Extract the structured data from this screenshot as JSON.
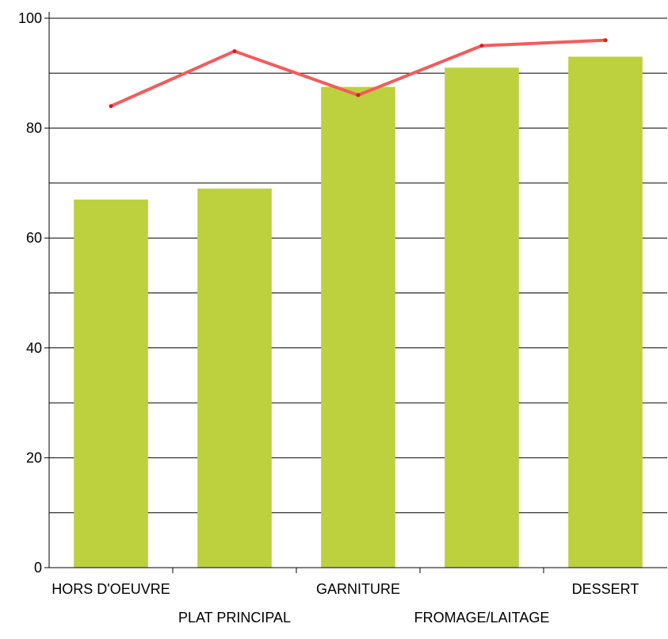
{
  "chart_data": {
    "type": "bar",
    "categories": [
      "HORS D'OEUVRE",
      "PLAT PRINCIPAL",
      "GARNITURE",
      "FROMAGE/LAITAGE",
      "DESSERT"
    ],
    "series": [
      {
        "type": "bar",
        "values": [
          67,
          69,
          87.5,
          91,
          93
        ],
        "color": "#bdd03d"
      },
      {
        "type": "line",
        "values": [
          84,
          94,
          86,
          95,
          96
        ],
        "color": "#f25c5c"
      }
    ],
    "ylim": [
      0,
      100
    ],
    "yticks": [
      0,
      20,
      40,
      60,
      80,
      100
    ],
    "ytick_labels": [
      "0",
      "20",
      "40",
      "60",
      "80",
      "100"
    ],
    "gridlines": [
      10,
      20,
      30,
      40,
      50,
      60,
      70,
      80,
      90,
      100
    ],
    "grid": true,
    "legend": false
  }
}
